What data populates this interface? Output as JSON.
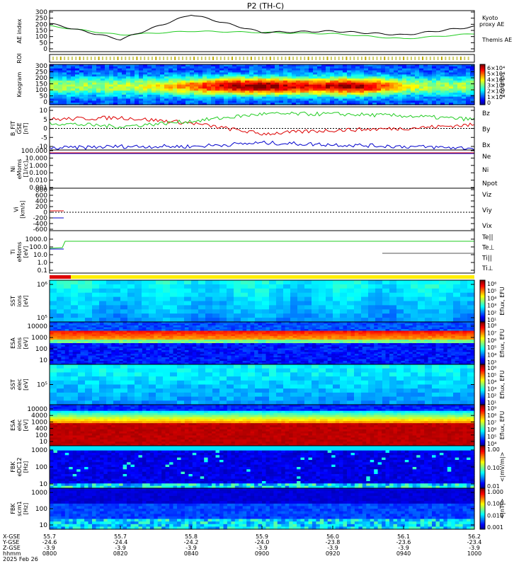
{
  "title": "P2 (TH-C)",
  "colors": {
    "black": "#000000",
    "green": "#22cc22",
    "red": "#dd0000",
    "blue": "#0000cc",
    "yellow": "#ffee00",
    "orange": "#ff6600"
  },
  "panels": {
    "ae": {
      "ylabel": "AE index",
      "ticks": [
        "300",
        "250",
        "200",
        "150",
        "100",
        "50",
        "0"
      ],
      "legend": [
        {
          "text": "Kyoto",
          "color": "#22cc22"
        },
        {
          "text": "proxy AE",
          "color": "#22cc22"
        },
        {
          "text": "Themis AE",
          "color": "#000000"
        }
      ]
    },
    "roi": {
      "ylabel": "ROI"
    },
    "keogram": {
      "ylabel": "Keogram",
      "ticks": [
        "300",
        "250",
        "200",
        "150",
        "100",
        "50",
        "0"
      ],
      "cbar_ticks": [
        "6×10⁴",
        "5×10⁴",
        "4×10⁴",
        "3×10⁴",
        "2×10⁴",
        "1×10⁴",
        "0"
      ],
      "cbar_label": "[counts]"
    },
    "bfit": {
      "ylabel": "B_FIT",
      "ylabel2": "GSE",
      "ylabel3": "[nT]",
      "ticks": [
        "10",
        "5",
        "0",
        "-5",
        "-10"
      ],
      "legend": [
        {
          "text": "Bz",
          "color": "#dd0000"
        },
        {
          "text": "By",
          "color": "#22cc22"
        },
        {
          "text": "Bx",
          "color": "#0000cc"
        }
      ]
    },
    "ni": {
      "ylabel": "Ni",
      "ylabel2": "eMoms",
      "ylabel3": "[1/cc]",
      "ticks": [
        "100.000",
        "10.000",
        "1.000",
        "0.100",
        "0.010",
        "0.001"
      ],
      "legend": [
        {
          "text": "Ne",
          "color": "#dd0000"
        },
        {
          "text": "Ni",
          "color": "#000000"
        },
        {
          "text": "Npot",
          "color": "#0000cc"
        }
      ]
    },
    "vi": {
      "ylabel": "Vi",
      "ylabel3": "[km/s]",
      "ticks": [
        "800",
        "600",
        "400",
        "200",
        "0",
        "-200",
        "-400",
        "-600"
      ],
      "legend": [
        {
          "text": "Viz",
          "color": "#dd0000"
        },
        {
          "text": "Viy",
          "color": "#22cc22"
        },
        {
          "text": "Vix",
          "color": "#0000cc"
        }
      ]
    },
    "ti": {
      "ylabel": "Ti",
      "ylabel2": "eMoms",
      "ylabel3": "[eV]",
      "ticks": [
        "1000.0",
        "100.0",
        "10.0",
        "1.0",
        "0.1"
      ],
      "legend": [
        {
          "text": "Te||",
          "color": "#000000"
        },
        {
          "text": "Te⊥",
          "color": "#dd0000"
        },
        {
          "text": "Ti||",
          "color": "#22cc22"
        },
        {
          "text": "Ti⊥",
          "color": "#0000cc"
        }
      ]
    },
    "sst_i": {
      "ylabel": "SST",
      "ylabel2": "ions",
      "ylabel3": "[eV]",
      "ticks": [
        "10⁶",
        "10⁵"
      ]
    },
    "esa_i": {
      "ylabel": "ESA",
      "ylabel2": "ions",
      "ylabel3": "[eV]",
      "ticks": [
        "10000",
        "1000",
        "100",
        "10"
      ]
    },
    "sst_e": {
      "ylabel": "SST",
      "ylabel2": "elec",
      "ylabel3": "[eV]",
      "ticks": [
        "10⁵"
      ]
    },
    "esa_e": {
      "ylabel": "ESA",
      "ylabel2": "elec",
      "ylabel3": "[eV]",
      "ticks": [
        "10000",
        "4000",
        "1000",
        "400",
        "100",
        "10"
      ]
    },
    "fbk_e": {
      "ylabel": "FBK",
      "ylabel2": "eDC12",
      "ylabel3": "[Hz]",
      "ticks": [
        "1000",
        "100",
        "10"
      ]
    },
    "fbk_b": {
      "ylabel": "FBK",
      "ylabel2": "scm1",
      "ylabel3": "[Hz]",
      "ticks": [
        "1000",
        "100",
        "10"
      ]
    }
  },
  "colorbars": {
    "sst_i": {
      "label": "Eflux, EFU",
      "ticks": [
        "10⁶",
        "10⁵",
        "10⁴",
        "10³",
        "10²",
        "10¹"
      ]
    },
    "esa_i": {
      "label": "Eflux, EFU",
      "ticks": [
        "10⁸",
        "10⁷",
        "10⁶",
        "10⁵",
        "10⁴",
        "10³"
      ]
    },
    "sst_e": {
      "label": "Eflux, EFU",
      "ticks": [
        "10⁶",
        "10⁵",
        "10⁴",
        "10³",
        "10²",
        "10¹"
      ]
    },
    "esa_e": {
      "label": "Eflux, EFU",
      "ticks": [
        "10⁹",
        "10⁸",
        "10⁷",
        "10⁶",
        "10⁵",
        "10⁴"
      ]
    },
    "fbk_e": {
      "label": "<|mV/m|>",
      "ticks": [
        "1.00",
        "0.10",
        "0.01"
      ]
    },
    "fbk_b": {
      "label": "<|nT|>",
      "ticks": [
        "1.000",
        "0.100",
        "0.010",
        "0.001"
      ]
    }
  },
  "xaxis": {
    "row_labels": [
      "X-GSE",
      "Y-GSE",
      "Z-GSE",
      "hhmm",
      "2025 Feb 26"
    ],
    "ticks": [
      {
        "x": "55.7",
        "y": "-24.6",
        "z": "-3.9",
        "t": "0800"
      },
      {
        "x": "55.7",
        "y": "-24.4",
        "z": "-3.9",
        "t": "0820"
      },
      {
        "x": "55.8",
        "y": "-24.2",
        "z": "-3.9",
        "t": "0840"
      },
      {
        "x": "55.9",
        "y": "-24.0",
        "z": "-3.9",
        "t": "0900"
      },
      {
        "x": "56.0",
        "y": "-23.8",
        "z": "-3.9",
        "t": "0920"
      },
      {
        "x": "56.1",
        "y": "-23.6",
        "z": "-3.9",
        "t": "0940"
      },
      {
        "x": "56.2",
        "y": "-23.4",
        "z": "-3.9",
        "t": "1000"
      }
    ]
  },
  "chart_data": {
    "type": "line",
    "title": "P2 (TH-C)",
    "x": [
      "0800",
      "0820",
      "0840",
      "0900",
      "0920",
      "0940",
      "1000"
    ],
    "series": [
      {
        "name": "Themis AE",
        "values": [
          220,
          95,
          290,
          150,
          160,
          130,
          195
        ]
      },
      {
        "name": "Kyoto proxy AE",
        "values": [
          200,
          130,
          160,
          150,
          140,
          100,
          140
        ]
      },
      {
        "name": "Bz",
        "values": [
          5,
          6,
          3,
          -3,
          -1,
          0,
          2
        ]
      },
      {
        "name": "By",
        "values": [
          3,
          1,
          4,
          8,
          8,
          7,
          5
        ]
      },
      {
        "name": "Bx",
        "values": [
          -11,
          -10,
          -10,
          -8,
          -9,
          -10,
          -11
        ]
      }
    ],
    "ylim": [
      0,
      320
    ]
  }
}
